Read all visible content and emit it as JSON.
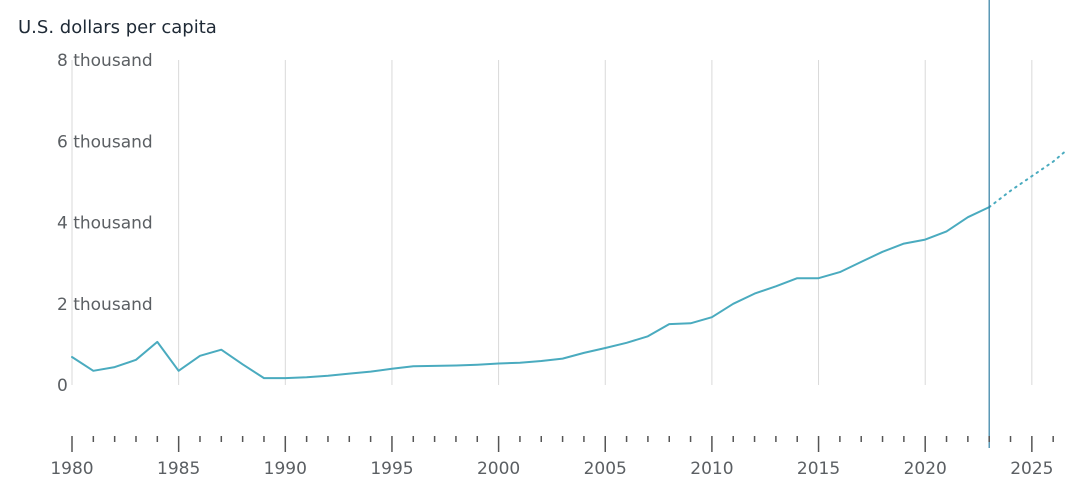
{
  "chart_data": {
    "type": "line",
    "ylabel": "U.S. dollars per capita",
    "x_tick_labels": [
      "1980",
      "1985",
      "1990",
      "1995",
      "2000",
      "2005",
      "2010",
      "2015",
      "2020",
      "2025"
    ],
    "y_tick_labels": [
      "0",
      "2 thousand",
      "4 thousand",
      "6 thousand",
      "8 thousand"
    ],
    "y_tick_values": [
      0,
      2000,
      4000,
      6000,
      8000
    ],
    "ylim": [
      0,
      8000
    ],
    "xlim": [
      1980,
      2026.5
    ],
    "grid": true,
    "series": [
      {
        "x": [
          1980,
          1981,
          1982,
          1983,
          1984,
          1985,
          1986,
          1987,
          1988,
          1989,
          1990,
          1991,
          1992,
          1993,
          1994,
          1995,
          1996,
          1997,
          1998,
          1999,
          2000,
          2001,
          2002,
          2003,
          2004,
          2005,
          2006,
          2007,
          2008,
          2009,
          2010,
          2011,
          2012,
          2013,
          2014,
          2015,
          2016,
          2017,
          2018,
          2019,
          2020,
          2021,
          2022,
          2023
        ],
        "values": [
          690,
          350,
          440,
          620,
          1060,
          350,
          720,
          870,
          510,
          170,
          170,
          190,
          230,
          280,
          330,
          400,
          460,
          470,
          480,
          500,
          530,
          550,
          590,
          650,
          790,
          910,
          1040,
          1200,
          1500,
          1520,
          1670,
          2000,
          2250,
          2430,
          2630,
          2630,
          2780,
          3030,
          3280,
          3480,
          3580,
          3780,
          4130,
          4380
        ]
      }
    ],
    "projection": {
      "x": [
        2023,
        2024,
        2025,
        2026,
        2026.5
      ],
      "values": [
        4380,
        4780,
        5140,
        5500,
        5720
      ]
    },
    "marker_year": 2023,
    "colors": {
      "series": "#4aabbf",
      "marker": "#2f7ea3"
    }
  }
}
